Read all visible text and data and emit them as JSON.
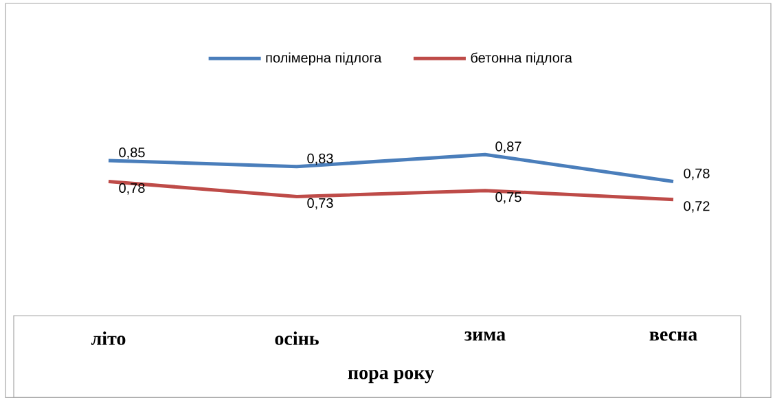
{
  "chart_data": {
    "type": "line",
    "categories": [
      "літо",
      "осінь",
      "зима",
      "весна"
    ],
    "xlabel": "пора року",
    "series": [
      {
        "name": "полімерна підлога",
        "color": "#4a7ebb",
        "values": [
          0.85,
          0.83,
          0.87,
          0.78
        ],
        "value_labels": [
          "0,85",
          "0,83",
          "0,87",
          "0,78"
        ]
      },
      {
        "name": "бетонна підлога",
        "color": "#be4b48",
        "values": [
          0.78,
          0.73,
          0.75,
          0.72
        ],
        "value_labels": [
          "0,78",
          "0,73",
          "0,75",
          "0,72"
        ]
      }
    ],
    "legend": "top",
    "tick_labels": "x"
  }
}
